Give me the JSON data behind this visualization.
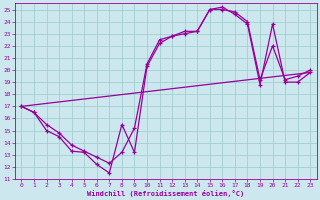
{
  "xlabel": "Windchill (Refroidissement éolien,°C)",
  "bg_color": "#cce8ee",
  "line_color": "#990099",
  "grid_color": "#99cccc",
  "xlim": [
    -0.5,
    23.5
  ],
  "ylim": [
    11,
    25.5
  ],
  "xticks": [
    0,
    1,
    2,
    3,
    4,
    5,
    6,
    7,
    8,
    9,
    10,
    11,
    12,
    13,
    14,
    15,
    16,
    17,
    18,
    19,
    20,
    21,
    22,
    23
  ],
  "yticks": [
    11,
    12,
    13,
    14,
    15,
    16,
    17,
    18,
    19,
    20,
    21,
    22,
    23,
    24,
    25
  ],
  "line1_x": [
    0,
    1,
    2,
    3,
    4,
    5,
    6,
    7,
    8,
    9,
    10,
    11,
    12,
    13,
    14,
    15,
    16,
    17,
    18,
    19,
    20,
    21,
    22,
    23
  ],
  "line1_y": [
    17.0,
    16.5,
    15.0,
    14.5,
    13.3,
    13.2,
    12.2,
    11.5,
    15.5,
    13.2,
    20.3,
    22.2,
    22.8,
    23.2,
    23.2,
    25.0,
    25.0,
    24.8,
    24.0,
    19.2,
    22.0,
    19.2,
    19.5,
    20.0
  ],
  "line2_x": [
    0,
    1,
    2,
    3,
    4,
    5,
    6,
    7,
    8,
    9,
    10,
    11,
    12,
    13,
    14,
    15,
    16,
    17,
    18,
    19,
    20,
    21,
    22,
    23
  ],
  "line2_y": [
    17.0,
    16.5,
    15.5,
    14.8,
    13.8,
    13.3,
    12.8,
    12.3,
    13.2,
    15.2,
    20.5,
    22.5,
    22.8,
    23.0,
    23.2,
    25.0,
    25.2,
    24.6,
    23.8,
    18.8,
    23.8,
    19.0,
    19.0,
    19.8
  ],
  "line3_x": [
    0,
    23
  ],
  "line3_y": [
    17.0,
    19.8
  ]
}
